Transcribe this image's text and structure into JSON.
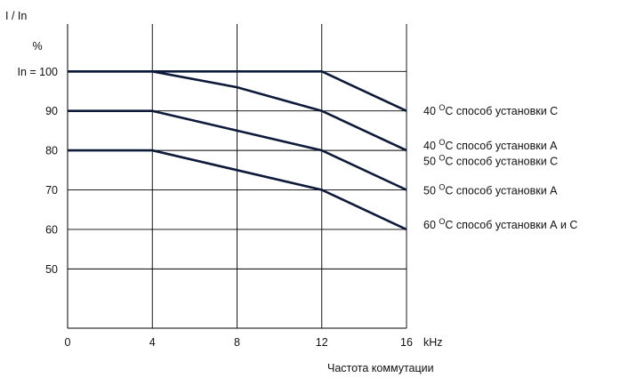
{
  "chart_data": {
    "type": "line",
    "y_axis_title": "I / In",
    "y_unit": "%",
    "y_ticks": [
      {
        "value": 100,
        "label": "In = 100"
      },
      {
        "value": 90,
        "label": "90"
      },
      {
        "value": 80,
        "label": "80"
      },
      {
        "value": 70,
        "label": "70"
      },
      {
        "value": 60,
        "label": "60"
      },
      {
        "value": 50,
        "label": "50"
      }
    ],
    "x_ticks": [
      {
        "value": 0,
        "label": "0"
      },
      {
        "value": 4,
        "label": "4"
      },
      {
        "value": 8,
        "label": "8"
      },
      {
        "value": 12,
        "label": "12"
      },
      {
        "value": 16,
        "label": "16"
      }
    ],
    "x_unit": "kHz",
    "x_label": "Частота коммутации",
    "xlim": [
      0,
      16
    ],
    "ylim": [
      35,
      112
    ],
    "grid": true,
    "series": [
      {
        "x": [
          0,
          4,
          12,
          16
        ],
        "y": [
          100,
          100,
          100,
          90
        ]
      },
      {
        "x": [
          0,
          4,
          8,
          12,
          16
        ],
        "y": [
          100,
          100,
          96,
          90,
          80
        ]
      },
      {
        "x": [
          0,
          4,
          12,
          16
        ],
        "y": [
          90,
          90,
          80,
          70
        ]
      },
      {
        "x": [
          0,
          4,
          12,
          16
        ],
        "y": [
          80,
          80,
          70,
          60
        ]
      }
    ],
    "annotations": [
      {
        "y": 90,
        "pre": "40 ",
        "sup": "O",
        "post": "C способ установки С"
      },
      {
        "y": 81.3,
        "pre": "40 ",
        "sup": "O",
        "post": "C способ установки А"
      },
      {
        "y": 77.3,
        "pre": "50 ",
        "sup": "O",
        "post": "C способ установки  С"
      },
      {
        "y": 69.9,
        "pre": "50 ",
        "sup": "O",
        "post": "C способ установки А"
      },
      {
        "y": 61.2,
        "pre": "60 ",
        "sup": "O",
        "post": "C способ установки А и С"
      }
    ]
  }
}
